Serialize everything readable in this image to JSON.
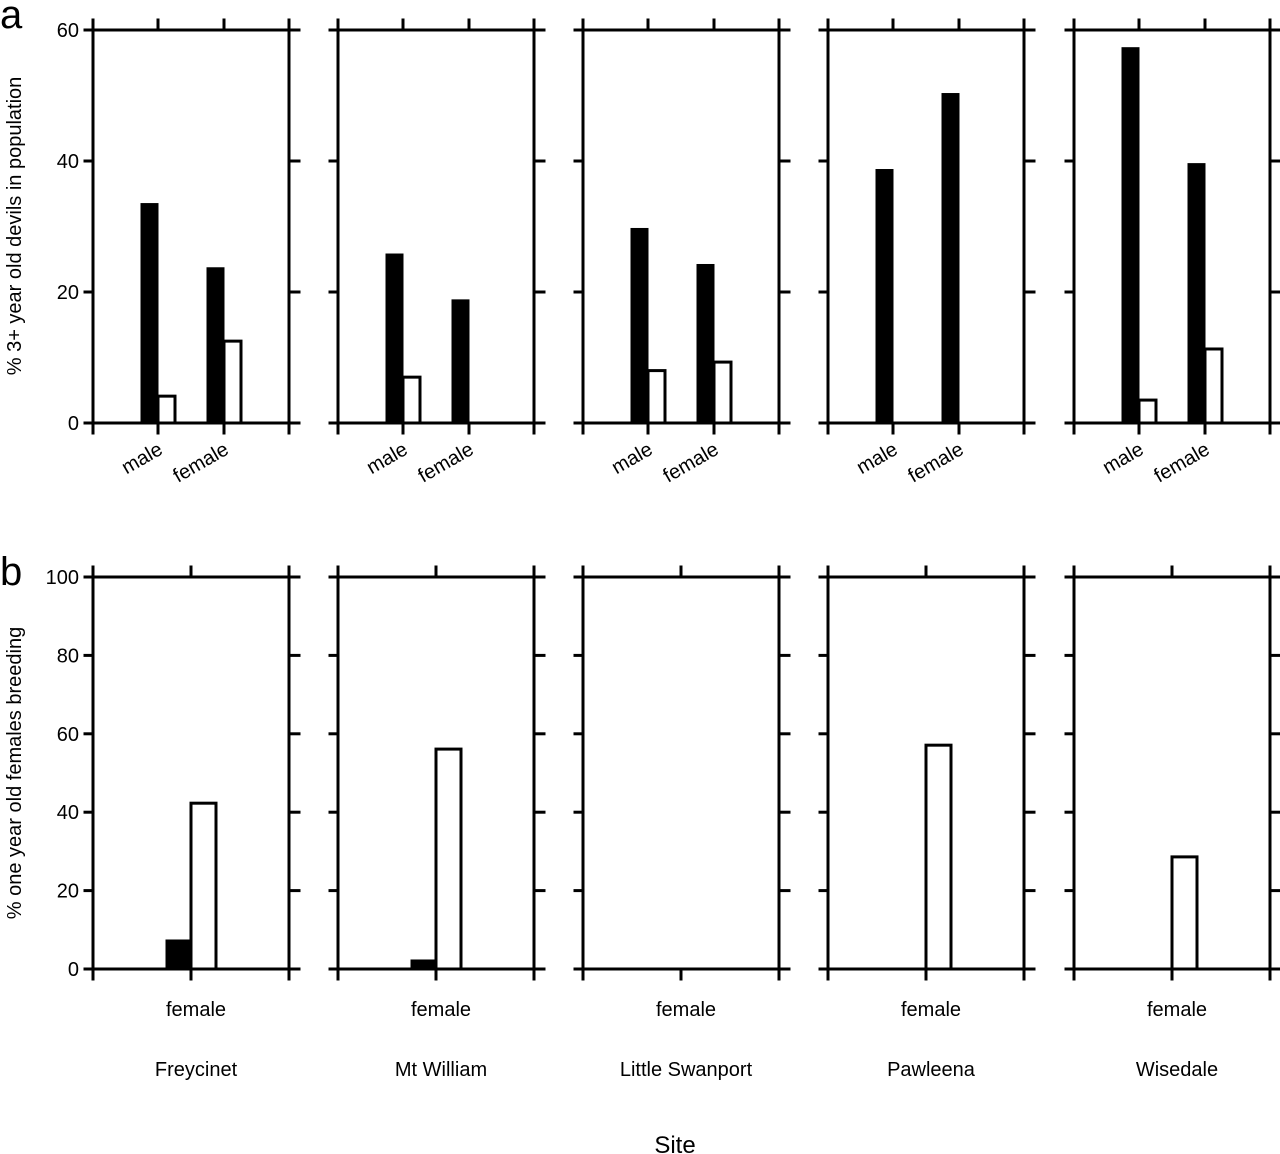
{
  "chart_data": [
    {
      "type": "bar",
      "panel_letter": "a",
      "ylabel": "% 3+ year old devils in population",
      "ylim": [
        0,
        60
      ],
      "yticks": [
        "0",
        "20",
        "40",
        "60"
      ],
      "categories": [
        "male",
        "female"
      ],
      "sites": [
        {
          "name": "Freycinet",
          "series": [
            {
              "name": "black",
              "values": [
                33.5,
                23.7
              ]
            },
            {
              "name": "white",
              "values": [
                4.1,
                12.5
              ]
            }
          ]
        },
        {
          "name": "Mt William",
          "series": [
            {
              "name": "black",
              "values": [
                25.8,
                18.8
              ]
            },
            {
              "name": "white",
              "values": [
                7.0,
                0
              ]
            }
          ]
        },
        {
          "name": "Little Swanport",
          "series": [
            {
              "name": "black",
              "values": [
                29.7,
                24.2
              ]
            },
            {
              "name": "white",
              "values": [
                8.0,
                9.3
              ]
            }
          ]
        },
        {
          "name": "Pawleena",
          "series": [
            {
              "name": "black",
              "values": [
                38.7,
                50.3
              ]
            },
            {
              "name": "white",
              "values": [
                0,
                0
              ]
            }
          ]
        },
        {
          "name": "Wisedale",
          "series": [
            {
              "name": "black",
              "values": [
                57.3,
                39.6
              ]
            },
            {
              "name": "white",
              "values": [
                3.5,
                11.3
              ]
            }
          ]
        }
      ],
      "grid": false
    },
    {
      "type": "bar",
      "panel_letter": "b",
      "ylabel": "% one year old females breeding",
      "ylim": [
        0,
        100
      ],
      "yticks": [
        "0",
        "20",
        "40",
        "60",
        "80",
        "100"
      ],
      "categories": [
        "female"
      ],
      "sites": [
        {
          "name": "Freycinet",
          "series": [
            {
              "name": "black",
              "values": [
                7.4
              ]
            },
            {
              "name": "white",
              "values": [
                42.3
              ]
            }
          ]
        },
        {
          "name": "Mt William",
          "series": [
            {
              "name": "black",
              "values": [
                2.3
              ]
            },
            {
              "name": "white",
              "values": [
                56.1
              ]
            }
          ]
        },
        {
          "name": "Little Swanport",
          "series": [
            {
              "name": "black",
              "values": [
                0
              ]
            },
            {
              "name": "white",
              "values": [
                0
              ]
            }
          ]
        },
        {
          "name": "Pawleena",
          "series": [
            {
              "name": "black",
              "values": [
                0
              ]
            },
            {
              "name": "white",
              "values": [
                57.1
              ]
            }
          ]
        },
        {
          "name": "Wisedale",
          "series": [
            {
              "name": "black",
              "values": [
                0
              ]
            },
            {
              "name": "white",
              "values": [
                28.6
              ]
            }
          ]
        }
      ],
      "grid": false
    }
  ],
  "xlabel": "Site",
  "colors": {
    "black_bar": "#000000",
    "white_bar": "#ffffff",
    "axis": "#000000"
  }
}
